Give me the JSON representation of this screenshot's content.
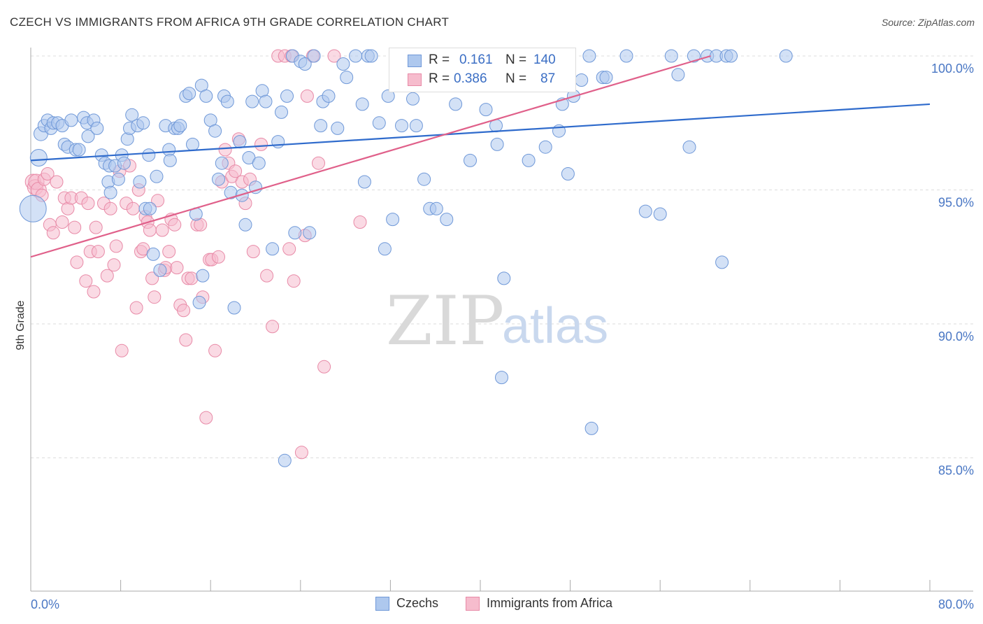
{
  "title": "CZECH VS IMMIGRANTS FROM AFRICA 9TH GRADE CORRELATION CHART",
  "source": "Source: ZipAtlas.com",
  "watermark": {
    "zip": "ZIP",
    "atlas": "atlas"
  },
  "legend": {
    "r_label": "R =",
    "n_label": "N =",
    "rows": [
      {
        "name": "Czechs",
        "r": "0.161",
        "n": "140",
        "fill": "#aec8ee",
        "stroke": "#6f98d8"
      },
      {
        "name": "Immigrants from Africa",
        "r": "0.386",
        "n": "87",
        "fill": "#f6bccd",
        "stroke": "#e88aa7"
      }
    ]
  },
  "bottom_legend": [
    "Czechs",
    "Immigrants from Africa"
  ],
  "chart_data": {
    "type": "scatter",
    "title": "CZECH VS IMMIGRANTS FROM AFRICA 9TH GRADE CORRELATION CHART",
    "ylabel": "9th Grade",
    "xlabel": "",
    "xlim": [
      0,
      80
    ],
    "ylim": [
      80.5,
      100.7
    ],
    "x_tick_labels": [
      {
        "v": 0,
        "label": "0.0%"
      },
      {
        "v": 80,
        "label": "80.0%"
      }
    ],
    "y_ticks": [
      {
        "v": 100,
        "label": "100.0%"
      },
      {
        "v": 95,
        "label": "95.0%"
      },
      {
        "v": 90,
        "label": "90.0%"
      },
      {
        "v": 85,
        "label": "85.0%"
      }
    ],
    "grid": "horizontal dashed",
    "legend_placement": "top-center",
    "series": [
      {
        "name": "Czechs",
        "color": "#6f98d8",
        "fill": "#aec8ee",
        "trend": {
          "x": [
            0,
            80
          ],
          "y": [
            96.1,
            98.2
          ]
        },
        "points": [
          [
            0.2,
            94.3
          ],
          [
            0.7,
            96.2
          ],
          [
            0.9,
            97.1
          ],
          [
            1.2,
            97.4
          ],
          [
            1.5,
            97.6
          ],
          [
            1.8,
            97.3
          ],
          [
            2.0,
            97.5
          ],
          [
            2.4,
            97.5
          ],
          [
            2.8,
            97.4
          ],
          [
            3.0,
            96.7
          ],
          [
            3.3,
            96.6
          ],
          [
            3.6,
            97.6
          ],
          [
            4.0,
            96.5
          ],
          [
            4.3,
            96.5
          ],
          [
            4.7,
            97.7
          ],
          [
            5.0,
            97.5
          ],
          [
            5.1,
            97.0
          ],
          [
            5.6,
            97.6
          ],
          [
            5.9,
            97.3
          ],
          [
            6.3,
            96.3
          ],
          [
            6.6,
            96.0
          ],
          [
            6.9,
            95.3
          ],
          [
            7.0,
            95.9
          ],
          [
            7.1,
            94.9
          ],
          [
            7.5,
            95.9
          ],
          [
            7.8,
            95.4
          ],
          [
            8.1,
            96.3
          ],
          [
            8.3,
            96.0
          ],
          [
            8.6,
            96.9
          ],
          [
            8.8,
            97.3
          ],
          [
            9.0,
            97.8
          ],
          [
            9.5,
            97.4
          ],
          [
            9.7,
            95.3
          ],
          [
            10.0,
            97.5
          ],
          [
            10.2,
            94.3
          ],
          [
            10.5,
            96.3
          ],
          [
            10.6,
            94.3
          ],
          [
            10.9,
            92.6
          ],
          [
            11.2,
            95.5
          ],
          [
            11.5,
            92.0
          ],
          [
            12.0,
            97.4
          ],
          [
            12.3,
            96.5
          ],
          [
            12.4,
            96.1
          ],
          [
            12.8,
            97.3
          ],
          [
            13.1,
            97.3
          ],
          [
            13.3,
            97.4
          ],
          [
            13.8,
            98.5
          ],
          [
            14.1,
            98.6
          ],
          [
            14.4,
            96.7
          ],
          [
            14.7,
            94.1
          ],
          [
            15.0,
            90.8
          ],
          [
            15.3,
            91.8
          ],
          [
            15.2,
            98.9
          ],
          [
            15.6,
            98.5
          ],
          [
            16.0,
            97.6
          ],
          [
            16.4,
            97.2
          ],
          [
            16.7,
            95.4
          ],
          [
            17.0,
            96.0
          ],
          [
            17.2,
            98.5
          ],
          [
            17.5,
            98.3
          ],
          [
            17.8,
            94.9
          ],
          [
            18.1,
            90.6
          ],
          [
            18.6,
            96.8
          ],
          [
            18.8,
            94.8
          ],
          [
            19.1,
            93.7
          ],
          [
            19.4,
            96.2
          ],
          [
            19.7,
            98.3
          ],
          [
            20.0,
            95.1
          ],
          [
            20.3,
            96.0
          ],
          [
            20.6,
            98.7
          ],
          [
            20.9,
            98.3
          ],
          [
            21.5,
            92.8
          ],
          [
            22.0,
            96.8
          ],
          [
            22.3,
            97.9
          ],
          [
            22.6,
            84.9
          ],
          [
            22.8,
            98.5
          ],
          [
            23.3,
            100.0
          ],
          [
            23.5,
            93.4
          ],
          [
            24.0,
            99.8
          ],
          [
            24.4,
            99.7
          ],
          [
            24.8,
            93.4
          ],
          [
            25.2,
            100.0
          ],
          [
            25.8,
            97.4
          ],
          [
            26.0,
            98.3
          ],
          [
            26.5,
            98.5
          ],
          [
            27.3,
            97.3
          ],
          [
            27.8,
            99.7
          ],
          [
            28.1,
            99.2
          ],
          [
            28.9,
            100.0
          ],
          [
            29.5,
            98.2
          ],
          [
            29.7,
            95.3
          ],
          [
            30.0,
            100.0
          ],
          [
            30.3,
            100.0
          ],
          [
            31.0,
            97.5
          ],
          [
            31.5,
            92.8
          ],
          [
            31.8,
            98.5
          ],
          [
            32.2,
            93.9
          ],
          [
            32.8,
            100.0
          ],
          [
            33.0,
            97.4
          ],
          [
            34.0,
            98.4
          ],
          [
            34.3,
            97.4
          ],
          [
            35.0,
            95.4
          ],
          [
            35.5,
            94.3
          ],
          [
            36.1,
            94.3
          ],
          [
            36.7,
            99.2
          ],
          [
            37.0,
            93.9
          ],
          [
            37.3,
            100.0
          ],
          [
            37.8,
            98.2
          ],
          [
            38.4,
            100.0
          ],
          [
            39.1,
            96.1
          ],
          [
            40.1,
            100.0
          ],
          [
            40.5,
            98.0
          ],
          [
            41.4,
            97.4
          ],
          [
            41.5,
            96.7
          ],
          [
            41.8,
            100.0
          ],
          [
            41.9,
            88.0
          ],
          [
            42.1,
            91.7
          ],
          [
            42.5,
            100.0
          ],
          [
            44.3,
            96.1
          ],
          [
            45.1,
            100.0
          ],
          [
            45.8,
            96.6
          ],
          [
            46.3,
            100.0
          ],
          [
            47.0,
            97.2
          ],
          [
            47.3,
            98.2
          ],
          [
            47.8,
            95.6
          ],
          [
            47.9,
            100.0
          ],
          [
            48.3,
            98.5
          ],
          [
            49.0,
            99.1
          ],
          [
            49.7,
            100.0
          ],
          [
            49.9,
            86.1
          ],
          [
            50.9,
            99.2
          ],
          [
            51.2,
            99.2
          ],
          [
            53.0,
            100.0
          ],
          [
            54.7,
            94.2
          ],
          [
            56.0,
            94.1
          ],
          [
            57.0,
            100.0
          ],
          [
            57.6,
            99.3
          ],
          [
            58.6,
            96.6
          ],
          [
            59.0,
            100.0
          ],
          [
            60.2,
            100.0
          ],
          [
            61.0,
            100.0
          ],
          [
            61.5,
            92.3
          ],
          [
            61.9,
            100.0
          ],
          [
            62.3,
            100.0
          ],
          [
            67.2,
            100.0
          ]
        ]
      },
      {
        "name": "Immigrants from Africa",
        "color": "#e88aa7",
        "fill": "#f6bccd",
        "trend": {
          "x": [
            0,
            60.5
          ],
          "y": [
            92.5,
            100.0
          ]
        },
        "points": [
          [
            0.2,
            95.3
          ],
          [
            0.4,
            95.1
          ],
          [
            0.5,
            95.3
          ],
          [
            0.7,
            95.0
          ],
          [
            1.0,
            94.8
          ],
          [
            1.2,
            95.4
          ],
          [
            1.5,
            95.6
          ],
          [
            1.7,
            93.7
          ],
          [
            2.0,
            93.4
          ],
          [
            2.3,
            95.3
          ],
          [
            2.8,
            93.8
          ],
          [
            3.0,
            94.7
          ],
          [
            3.3,
            94.3
          ],
          [
            3.6,
            94.7
          ],
          [
            3.9,
            93.6
          ],
          [
            4.1,
            92.3
          ],
          [
            4.5,
            94.7
          ],
          [
            4.9,
            91.6
          ],
          [
            5.1,
            94.5
          ],
          [
            5.3,
            92.7
          ],
          [
            5.6,
            91.2
          ],
          [
            5.8,
            93.6
          ],
          [
            6.0,
            92.7
          ],
          [
            6.5,
            94.5
          ],
          [
            6.8,
            91.8
          ],
          [
            7.1,
            94.3
          ],
          [
            7.4,
            92.2
          ],
          [
            7.6,
            92.9
          ],
          [
            7.9,
            95.7
          ],
          [
            8.1,
            89.0
          ],
          [
            8.5,
            94.5
          ],
          [
            8.8,
            95.9
          ],
          [
            9.1,
            94.3
          ],
          [
            9.4,
            90.6
          ],
          [
            9.6,
            95.0
          ],
          [
            9.8,
            92.7
          ],
          [
            10.0,
            92.8
          ],
          [
            10.2,
            94.0
          ],
          [
            10.4,
            93.8
          ],
          [
            10.6,
            93.5
          ],
          [
            10.8,
            91.7
          ],
          [
            11.0,
            91.0
          ],
          [
            11.3,
            94.6
          ],
          [
            11.7,
            93.5
          ],
          [
            11.9,
            92.0
          ],
          [
            12.0,
            92.1
          ],
          [
            12.3,
            92.7
          ],
          [
            12.5,
            93.9
          ],
          [
            12.8,
            93.7
          ],
          [
            13.0,
            92.1
          ],
          [
            13.3,
            90.7
          ],
          [
            13.6,
            90.5
          ],
          [
            13.8,
            89.4
          ],
          [
            14.0,
            91.7
          ],
          [
            14.3,
            91.7
          ],
          [
            14.8,
            93.7
          ],
          [
            15.1,
            93.7
          ],
          [
            15.3,
            91.0
          ],
          [
            15.6,
            86.5
          ],
          [
            15.9,
            92.4
          ],
          [
            16.1,
            92.4
          ],
          [
            16.4,
            89.0
          ],
          [
            16.7,
            92.5
          ],
          [
            17.0,
            95.3
          ],
          [
            17.3,
            96.5
          ],
          [
            17.6,
            96.0
          ],
          [
            17.9,
            95.5
          ],
          [
            18.2,
            95.7
          ],
          [
            18.5,
            96.9
          ],
          [
            18.8,
            95.3
          ],
          [
            19.1,
            94.5
          ],
          [
            19.5,
            95.4
          ],
          [
            19.8,
            92.7
          ],
          [
            20.5,
            96.7
          ],
          [
            21.0,
            91.8
          ],
          [
            21.5,
            89.9
          ],
          [
            22.0,
            100.0
          ],
          [
            22.6,
            100.0
          ],
          [
            23.0,
            92.8
          ],
          [
            23.2,
            100.0
          ],
          [
            23.4,
            91.6
          ],
          [
            24.1,
            85.2
          ],
          [
            24.4,
            93.3
          ],
          [
            24.6,
            98.5
          ],
          [
            25.1,
            100.0
          ],
          [
            25.6,
            96.0
          ],
          [
            26.1,
            88.4
          ],
          [
            27.0,
            100.0
          ],
          [
            29.3,
            93.8
          ]
        ]
      }
    ]
  }
}
